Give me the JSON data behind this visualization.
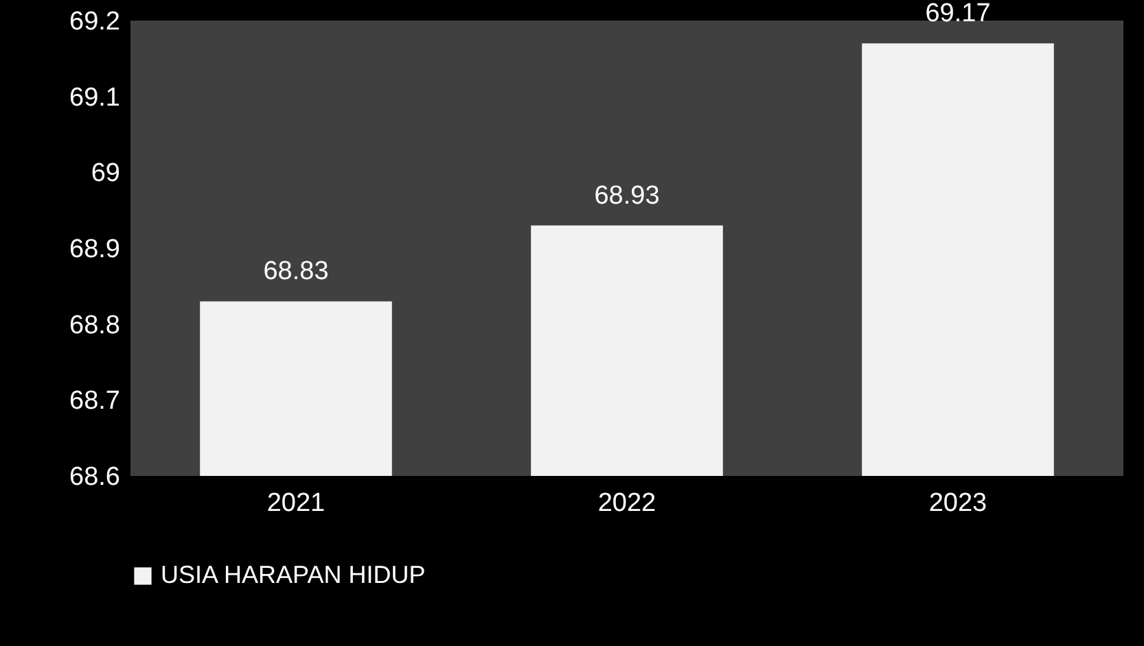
{
  "chart_data": {
    "type": "bar",
    "categories": [
      "2021",
      "2022",
      "2023"
    ],
    "series": [
      {
        "name": "USIA HARAPAN HIDUP",
        "color": "#f2f2f2",
        "values": [
          68.83,
          68.93,
          69.17
        ]
      }
    ],
    "ylim": [
      68.6,
      69.2
    ],
    "yticks": [
      68.6,
      68.7,
      68.8,
      68.9,
      69,
      69.1,
      69.2
    ],
    "data_labels": true,
    "grid": false,
    "legend": "bottom"
  }
}
